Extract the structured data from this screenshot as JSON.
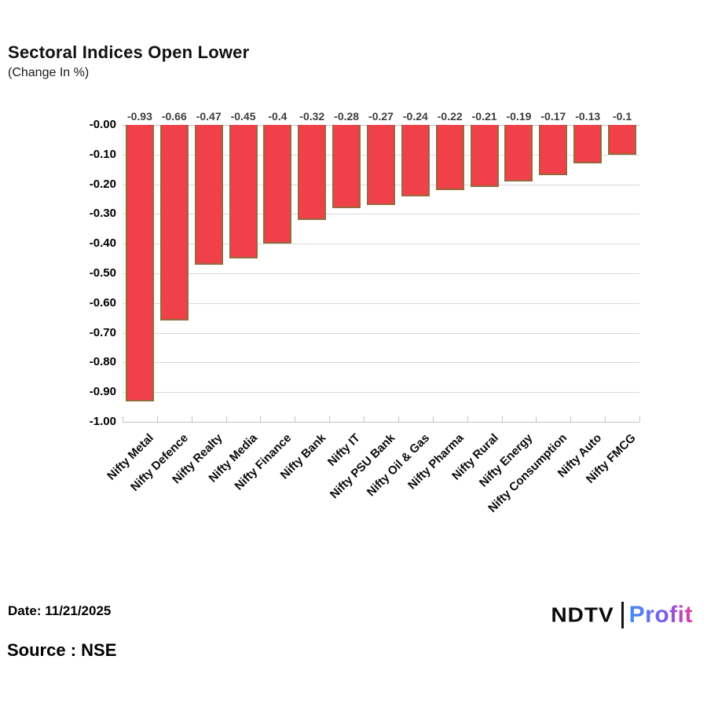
{
  "header": {
    "title": "Sectoral Indices Open Lower",
    "subtitle": "(Change In %)"
  },
  "chart_data": {
    "type": "bar",
    "title": "Sectoral Indices Open Lower",
    "subtitle": "(Change In %)",
    "categories": [
      "Nifty Metal",
      "Nifty Defence",
      "Nifty Realty",
      "Nifty Media",
      "Nifty Finance",
      "Nifty Bank",
      "Nifty IT",
      "Nifty PSU Bank",
      "Nifty Oil & Gas",
      "Nifty Pharma",
      "Nifty Rural",
      "Nifty Energy",
      "Nifty Consumption",
      "Nifty Auto",
      "Nifty FMCG"
    ],
    "values": [
      -0.93,
      -0.66,
      -0.47,
      -0.45,
      -0.4,
      -0.32,
      -0.28,
      -0.27,
      -0.24,
      -0.22,
      -0.21,
      -0.19,
      -0.17,
      -0.13,
      -0.1
    ],
    "value_labels": [
      "-0.93",
      "-0.66",
      "-0.47",
      "-0.45",
      "-0.4",
      "-0.32",
      "-0.28",
      "-0.27",
      "-0.24",
      "-0.22",
      "-0.21",
      "-0.19",
      "-0.17",
      "-0.13",
      "-0.1"
    ],
    "yticks": [
      "-0.00",
      "-0.10",
      "-0.20",
      "-0.30",
      "-0.40",
      "-0.50",
      "-0.60",
      "-0.70",
      "-0.80",
      "-0.90",
      "-1.00"
    ],
    "ylim": [
      -1.0,
      0.0
    ],
    "xlabel": "",
    "ylabel": "",
    "grid": true,
    "legend": false,
    "bar_color": "#f0414a",
    "bar_border_color": "#96693c",
    "gridline_color": "#d9d9d9"
  },
  "footer": {
    "date_label": "Date: 11/21/2025",
    "source_label": "Source : NSE",
    "logo": {
      "ndtv": "NDTV",
      "profit": "Profit"
    }
  }
}
